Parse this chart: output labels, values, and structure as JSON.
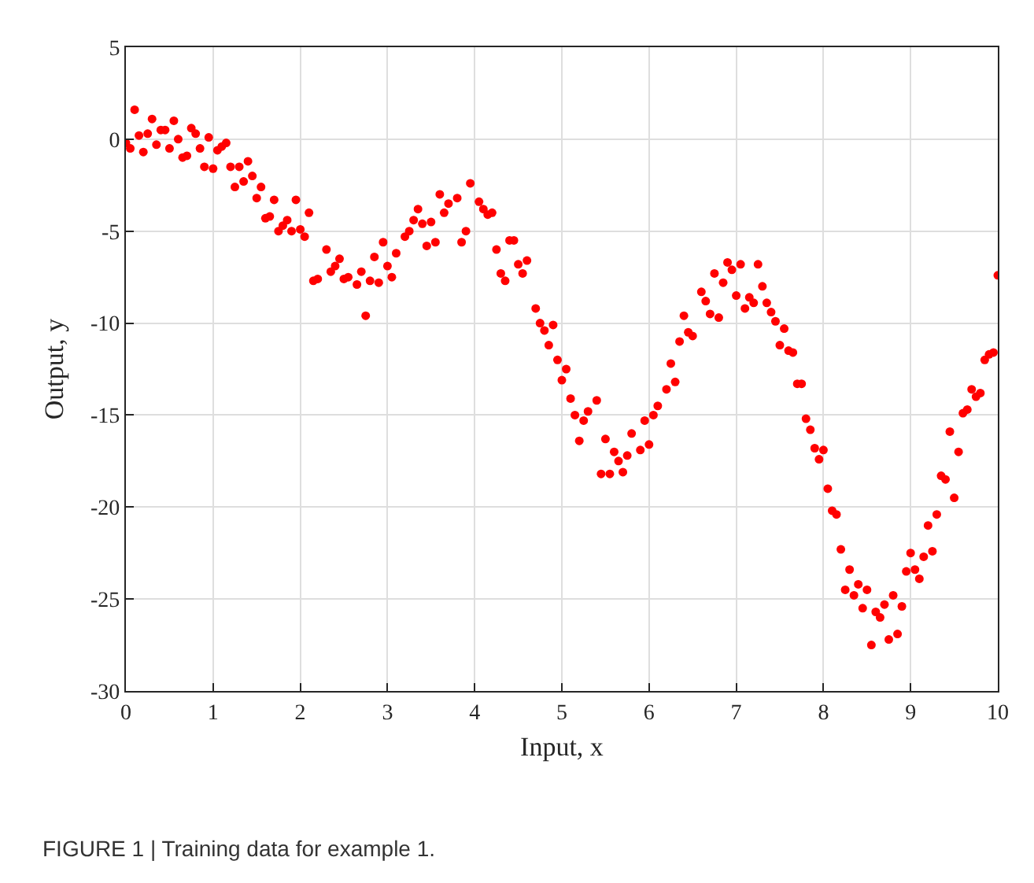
{
  "chart_data": {
    "type": "scatter",
    "xlabel": "Input, x",
    "ylabel": "Output, y",
    "annotations": [
      "FIGURE 1 | Training data for example 1."
    ],
    "x": [
      0,
      0.05,
      0.1,
      0.15,
      0.2,
      0.25,
      0.3,
      0.35,
      0.4,
      0.45,
      0.5,
      0.55,
      0.6,
      0.65,
      0.7,
      0.75,
      0.8,
      0.85,
      0.9,
      0.95,
      1.0,
      1.05,
      1.1,
      1.15,
      1.2,
      1.25,
      1.3,
      1.35,
      1.4,
      1.45,
      1.5,
      1.55,
      1.6,
      1.65,
      1.7,
      1.75,
      1.8,
      1.85,
      1.9,
      1.95,
      2.0,
      2.05,
      2.1,
      2.15,
      2.2,
      2.3,
      2.35,
      2.4,
      2.45,
      2.5,
      2.55,
      2.65,
      2.7,
      2.75,
      2.8,
      2.85,
      2.9,
      2.95,
      3.0,
      3.05,
      3.1,
      3.2,
      3.25,
      3.3,
      3.35,
      3.4,
      3.45,
      3.5,
      3.55,
      3.6,
      3.65,
      3.7,
      3.8,
      3.85,
      3.9,
      3.95,
      4.05,
      4.1,
      4.15,
      4.2,
      4.25,
      4.3,
      4.35,
      4.4,
      4.45,
      4.5,
      4.55,
      4.6,
      4.7,
      4.75,
      4.8,
      4.85,
      4.9,
      4.95,
      5.0,
      5.05,
      5.1,
      5.15,
      5.2,
      5.25,
      5.3,
      5.4,
      5.45,
      5.5,
      5.55,
      5.6,
      5.65,
      5.7,
      5.75,
      5.8,
      5.9,
      5.95,
      6.0,
      6.05,
      6.1,
      6.2,
      6.25,
      6.3,
      6.35,
      6.4,
      6.45,
      6.5,
      6.6,
      6.65,
      6.7,
      6.75,
      6.8,
      6.85,
      6.9,
      6.95,
      7.0,
      7.05,
      7.1,
      7.15,
      7.2,
      7.25,
      7.3,
      7.35,
      7.4,
      7.45,
      7.5,
      7.55,
      7.6,
      7.65,
      7.7,
      7.75,
      7.8,
      7.85,
      7.9,
      7.95,
      8.0,
      8.05,
      8.1,
      8.15,
      8.2,
      8.25,
      8.3,
      8.35,
      8.4,
      8.45,
      8.5,
      8.55,
      8.6,
      8.65,
      8.7,
      8.75,
      8.8,
      8.85,
      8.9,
      8.95,
      9.0,
      9.05,
      9.1,
      9.15,
      9.2,
      9.25,
      9.3,
      9.35,
      9.4,
      9.45,
      9.5,
      9.55,
      9.6,
      9.65,
      9.7,
      9.75,
      9.8,
      9.85,
      9.9,
      9.95,
      10.0
    ],
    "series": [
      {
        "color": "#ff0000",
        "values": [
          -0.2,
          -0.5,
          1.6,
          0.2,
          -0.7,
          0.3,
          1.1,
          -0.3,
          0.5,
          0.5,
          -0.5,
          1.0,
          0.0,
          -1.0,
          -0.9,
          0.6,
          0.3,
          -0.5,
          -1.5,
          0.1,
          -1.6,
          -0.6,
          -0.4,
          -0.2,
          -1.5,
          -2.6,
          -1.5,
          -2.3,
          -1.2,
          -2.0,
          -3.2,
          -2.6,
          -4.3,
          -4.2,
          -3.3,
          -5.0,
          -4.7,
          -4.4,
          -5.0,
          -3.3,
          -4.9,
          -5.3,
          -4.0,
          -7.7,
          -7.6,
          -6.0,
          -7.2,
          -6.9,
          -6.5,
          -7.6,
          -7.5,
          -7.9,
          -7.2,
          -9.6,
          -7.7,
          -6.4,
          -7.8,
          -5.6,
          -6.9,
          -7.5,
          -6.2,
          -5.3,
          -5.0,
          -4.4,
          -3.8,
          -4.6,
          -5.8,
          -4.5,
          -5.6,
          -3.0,
          -4.0,
          -3.5,
          -3.2,
          -5.6,
          -5.0,
          -2.4,
          -3.4,
          -3.8,
          -4.1,
          -4.0,
          -6.0,
          -7.3,
          -7.7,
          -5.5,
          -5.5,
          -6.8,
          -7.3,
          -6.6,
          -9.2,
          -10.0,
          -10.4,
          -11.2,
          -10.1,
          -12.0,
          -13.1,
          -12.5,
          -14.1,
          -15.0,
          -16.4,
          -15.3,
          -14.8,
          -14.2,
          -18.2,
          -16.3,
          -18.2,
          -17.0,
          -17.5,
          -18.1,
          -17.2,
          -16.0,
          -16.9,
          -15.3,
          -16.6,
          -15.0,
          -14.5,
          -13.6,
          -12.2,
          -13.2,
          -11.0,
          -9.6,
          -10.5,
          -10.7,
          -8.3,
          -8.8,
          -9.5,
          -7.3,
          -9.7,
          -7.8,
          -6.7,
          -7.1,
          -8.5,
          -6.8,
          -9.2,
          -8.6,
          -8.9,
          -6.8,
          -8.0,
          -8.9,
          -9.4,
          -9.9,
          -11.2,
          -10.3,
          -11.5,
          -11.6,
          -13.3,
          -13.3,
          -15.2,
          -15.8,
          -16.8,
          -17.4,
          -16.9,
          -19.0,
          -20.2,
          -20.4,
          -22.3,
          -24.5,
          -23.4,
          -24.8,
          -24.2,
          -25.5,
          -24.5,
          -27.5,
          -25.7,
          -26.0,
          -25.3,
          -27.2,
          -24.8,
          -26.9,
          -25.4,
          -23.5,
          -22.5,
          -23.4,
          -23.9,
          -22.7,
          -21.0,
          -22.4,
          -20.4,
          -18.3,
          -18.5,
          -15.9,
          -19.5,
          -17.0,
          -14.9,
          -14.7,
          -13.6,
          -14.0,
          -13.8,
          -12.0,
          -11.7,
          -11.6,
          -7.4
        ]
      }
    ],
    "xlim": [
      0,
      10
    ],
    "xticks": [
      0,
      1,
      2,
      3,
      4,
      5,
      6,
      7,
      8,
      9,
      10
    ],
    "ylim": [
      -30,
      5
    ],
    "yticks": [
      -30,
      -25,
      -20,
      -15,
      -10,
      -5,
      0,
      5
    ],
    "grid": true,
    "marker": "circle"
  }
}
